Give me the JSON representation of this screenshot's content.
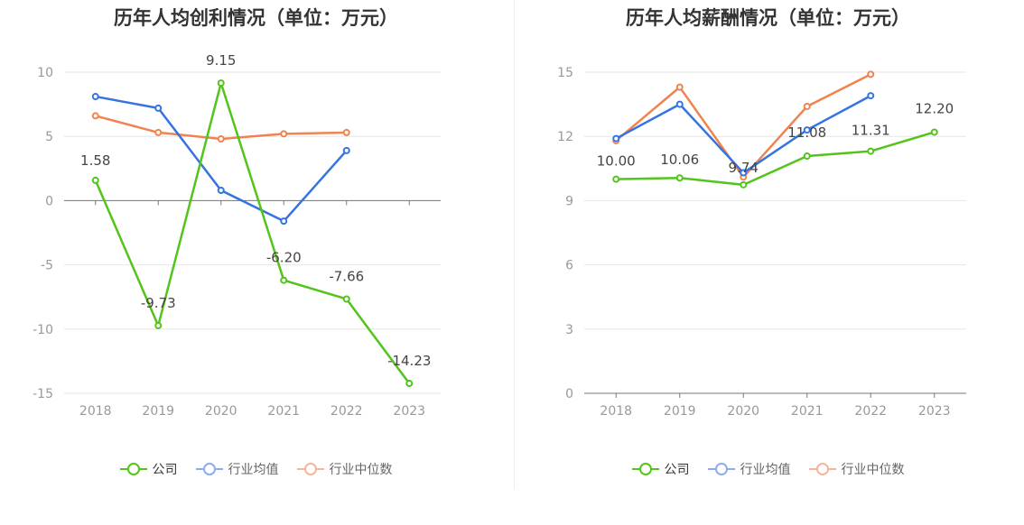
{
  "colors": {
    "company": "#52c41a",
    "industry_avg": "#3574e0",
    "industry_median": "#f0834f",
    "company_legend": "#52c41a",
    "avg_legend": "#8cabf0",
    "median_legend": "#f7b49a"
  },
  "legend": {
    "company": "公司",
    "industry_avg": "行业均值",
    "industry_median": "行业中位数"
  },
  "chart_data": [
    {
      "type": "line",
      "title": "历年人均创利情况（单位：万元）",
      "x": [
        "2018",
        "2019",
        "2020",
        "2021",
        "2022",
        "2023"
      ],
      "ylim": [
        -15,
        10
      ],
      "yticks": [
        10,
        5,
        0,
        -5,
        -10,
        -15
      ],
      "grid": true,
      "legend_position": "bottom",
      "series": [
        {
          "name": "公司",
          "values": [
            1.58,
            -9.73,
            9.15,
            -6.2,
            -7.66,
            -14.23
          ],
          "labels": [
            "1.58",
            "-9.73",
            "9.15",
            "-6.20",
            "-7.66",
            "-14.23"
          ]
        },
        {
          "name": "行业均值",
          "values": [
            8.1,
            7.2,
            0.8,
            -1.6,
            3.9,
            null
          ]
        },
        {
          "name": "行业中位数",
          "values": [
            6.6,
            5.3,
            4.8,
            5.2,
            5.3,
            null
          ]
        }
      ]
    },
    {
      "type": "line",
      "title": "历年人均薪酬情况（单位：万元）",
      "x": [
        "2018",
        "2019",
        "2020",
        "2021",
        "2022",
        "2023"
      ],
      "ylim": [
        0,
        15
      ],
      "yticks": [
        15,
        12,
        9,
        6,
        3,
        0
      ],
      "grid": true,
      "legend_position": "bottom",
      "series": [
        {
          "name": "公司",
          "values": [
            10.0,
            10.06,
            9.74,
            11.08,
            11.31,
            12.2
          ],
          "labels": [
            "10.00",
            "10.06",
            "9.74",
            "11.08",
            "11.31",
            "12.20"
          ]
        },
        {
          "name": "行业均值",
          "values": [
            11.9,
            13.5,
            10.3,
            12.3,
            13.9,
            null
          ]
        },
        {
          "name": "行业中位数",
          "values": [
            11.8,
            14.3,
            10.1,
            13.4,
            14.9,
            null
          ]
        }
      ]
    }
  ]
}
